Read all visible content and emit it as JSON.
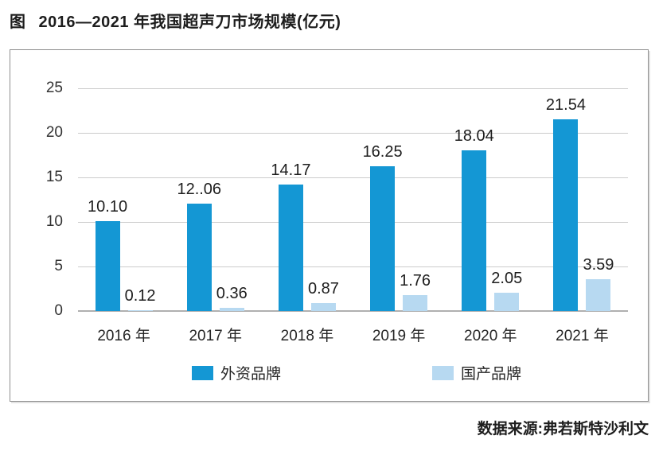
{
  "page": {
    "title": {
      "figure_label": "图",
      "text": "2016—2021 年我国超声刀市场规模(亿元)"
    },
    "source": "数据来源:弗若斯特沙利文"
  },
  "chart_data": {
    "type": "bar",
    "title": "2016—2021 年我国超声刀市场规模(亿元)",
    "categories": [
      "2016 年",
      "2017 年",
      "2018 年",
      "2019 年",
      "2020 年",
      "2021 年"
    ],
    "series": [
      {
        "name": "外资品牌",
        "color": "#1497d4",
        "values": [
          10.1,
          12.06,
          14.17,
          16.25,
          18.04,
          21.54
        ],
        "labels": [
          "10.10",
          "12..06",
          "14.17",
          "16.25",
          "18.04",
          "21.54"
        ]
      },
      {
        "name": "国产品牌",
        "color": "#b7d9f1",
        "values": [
          0.12,
          0.36,
          0.87,
          1.76,
          2.05,
          3.59
        ],
        "labels": [
          "0.12",
          "0.36",
          "0.87",
          "1.76",
          "2.05",
          "3.59"
        ]
      }
    ],
    "xlabel": "",
    "ylabel": "",
    "ylim": [
      0,
      25
    ],
    "yticks": [
      0,
      5,
      10,
      15,
      20,
      25
    ],
    "grid": true,
    "legend_position": "bottom",
    "colors": {
      "gridline": "#cbcbcb",
      "axis_line": "#b0b0b0",
      "panel_border": "#8f8f8f",
      "text": "#1d1d1d"
    }
  }
}
